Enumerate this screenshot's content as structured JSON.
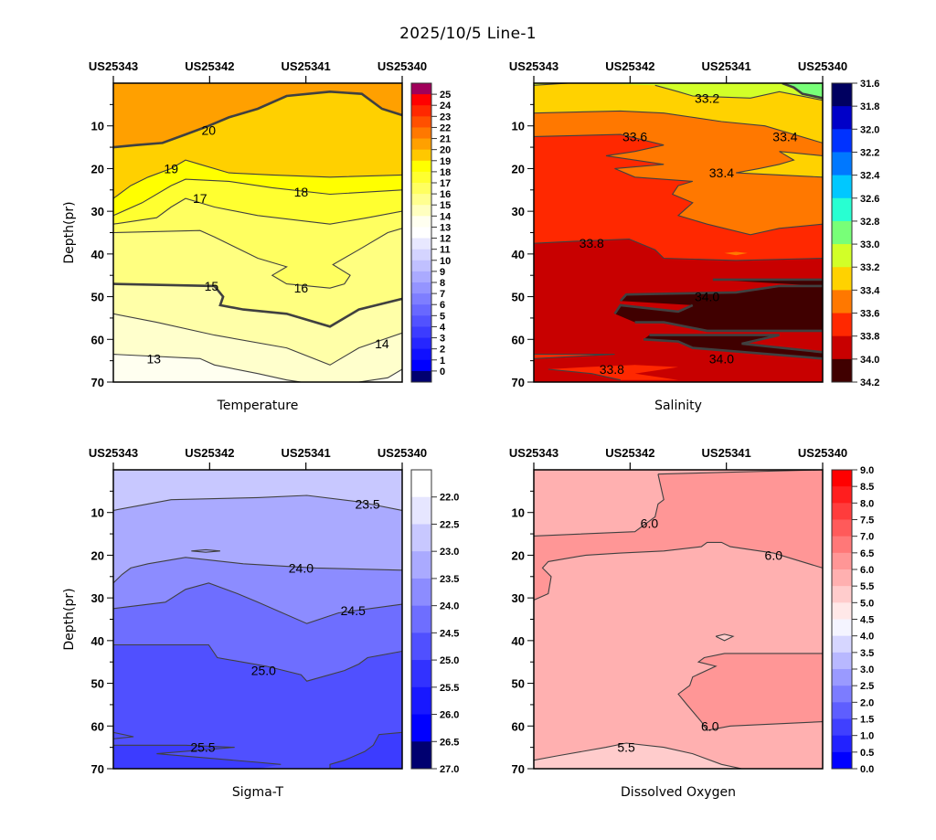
{
  "title": "2025/10/5  Line-1",
  "chart_data": [
    {
      "type": "contour",
      "title": "Temperature",
      "ylabel": "Depth(pr)",
      "x_stations": [
        "US25343",
        "US25342",
        "US25341",
        "US25340"
      ],
      "ylim": [
        0,
        70
      ],
      "y_ticks": [
        10,
        20,
        30,
        40,
        50,
        60,
        70
      ],
      "colorbar": {
        "levels": [
          0,
          1,
          2,
          3,
          4,
          5,
          6,
          7,
          8,
          9,
          10,
          11,
          12,
          13,
          14,
          15,
          16,
          17,
          18,
          19,
          20,
          21,
          22,
          23,
          24,
          25
        ],
        "tick_labels": [
          "25",
          "24",
          "23",
          "22",
          "21",
          "20",
          "19",
          "18",
          "17",
          "16",
          "15",
          "14",
          "13",
          "12",
          "11",
          "10",
          "9",
          "8",
          "7",
          "6",
          "5",
          "4",
          "3",
          "2",
          "1",
          "0"
        ],
        "colors_top_to_bottom": [
          "#a0005a",
          "#ff0000",
          "#ff2800",
          "#ff5000",
          "#ff7800",
          "#ffa000",
          "#ffc800",
          "#ffff00",
          "#ffff30",
          "#ffff60",
          "#ffff90",
          "#ffffc0",
          "#fffff0",
          "#ffffff",
          "#e8e8ff",
          "#d4d4ff",
          "#c0c0ff",
          "#aaaaff",
          "#9494ff",
          "#7e7eff",
          "#6868ff",
          "#5252ff",
          "#3c3cff",
          "#2626ff",
          "#1010ff",
          "#0000ff",
          "#000070"
        ]
      },
      "contour_labels": [
        "20",
        "19",
        "18",
        "17",
        "16",
        "15",
        "14",
        "13"
      ],
      "field_colors_by_band": {
        "20-21": "#ffa000",
        "19-20": "#ffd000",
        "18-19": "#ffff00",
        "17-18": "#ffff30",
        "16-17": "#ffff60",
        "15-16": "#ffff88",
        "14-15": "#ffffb0",
        "13-14": "#ffffd8",
        "12-13": "#fffff4"
      },
      "contour_depths": {
        "x": [
          0,
          0.25,
          0.5,
          0.75,
          1.0
        ],
        "c20": [
          15,
          13,
          7,
          2,
          8
        ],
        "c19": [
          27,
          19,
          21,
          21,
          21.5
        ],
        "c18": [
          31,
          22.5,
          26,
          26,
          25
        ],
        "c17": [
          33,
          30,
          32,
          32,
          30
        ],
        "c16": [
          35,
          35,
          42,
          48,
          34
        ],
        "c15": [
          47,
          48,
          53,
          57,
          50
        ],
        "c14": [
          54,
          58,
          62,
          66,
          58.5
        ],
        "c13": [
          63.5,
          65,
          67,
          71,
          67
        ]
      }
    },
    {
      "type": "contour",
      "title": "Salinity",
      "x_stations": [
        "US25343",
        "US25342",
        "US25341",
        "US25340"
      ],
      "ylim": [
        0,
        70
      ],
      "y_ticks": [
        10,
        20,
        30,
        40,
        50,
        60,
        70
      ],
      "colorbar": {
        "tick_labels": [
          "31.6",
          "31.8",
          "32.0",
          "32.2",
          "32.4",
          "32.6",
          "32.8",
          "33.0",
          "33.2",
          "33.4",
          "33.6",
          "33.8",
          "34.0",
          "34.2"
        ],
        "colors_top_to_bottom": [
          "#000060",
          "#0000c8",
          "#0032ff",
          "#0078ff",
          "#00c8ff",
          "#28ffd2",
          "#78ff78",
          "#d2ff28",
          "#ffd200",
          "#ff7800",
          "#ff2800",
          "#c80000",
          "#400000"
        ]
      },
      "contour_labels": [
        "33.2",
        "33.6",
        "33.4",
        "33.4",
        "33.8",
        "34.0",
        "34.0",
        "33.8"
      ]
    },
    {
      "type": "contour",
      "title": "Sigma-T",
      "ylabel": "Depth(pr)",
      "x_stations": [
        "US25343",
        "US25342",
        "US25341",
        "US25340"
      ],
      "ylim": [
        0,
        70
      ],
      "y_ticks": [
        10,
        20,
        30,
        40,
        50,
        60,
        70
      ],
      "colorbar": {
        "tick_labels": [
          "22.0",
          "22.5",
          "23.0",
          "23.5",
          "24.0",
          "24.5",
          "25.0",
          "25.5",
          "26.0",
          "26.5",
          "27.0"
        ],
        "colors_top_to_bottom": [
          "#ffffff",
          "#e6e6ff",
          "#c8c8ff",
          "#aaaaff",
          "#8c8cff",
          "#6e6eff",
          "#5050ff",
          "#3232ff",
          "#1818ff",
          "#0000ff",
          "#000070"
        ]
      },
      "contour_labels": [
        "23.5",
        "24.0",
        "24.5",
        "25.0",
        "25.5"
      ]
    },
    {
      "type": "contour",
      "title": "Dissolved Oxygen",
      "x_stations": [
        "US25343",
        "US25342",
        "US25341",
        "US25340"
      ],
      "ylim": [
        0,
        70
      ],
      "y_ticks": [
        10,
        20,
        30,
        40,
        50,
        60,
        70
      ],
      "colorbar": {
        "tick_labels": [
          "9.0",
          "8.5",
          "8.0",
          "7.5",
          "7.0",
          "6.5",
          "6.0",
          "5.5",
          "5.0",
          "4.5",
          "4.0",
          "3.5",
          "3.0",
          "2.5",
          "2.0",
          "1.5",
          "1.0",
          "0.5",
          "0.0"
        ],
        "colors_top_to_bottom": [
          "#ff0000",
          "#ff1e1e",
          "#ff3c3c",
          "#ff5a5a",
          "#ff7878",
          "#ff9696",
          "#ffb0b0",
          "#ffcccc",
          "#ffe8e8",
          "#f4f4ff",
          "#d6d6ff",
          "#b8b8ff",
          "#9a9aff",
          "#7c7cff",
          "#5e5eff",
          "#4040ff",
          "#2222ff",
          "#0000ff"
        ]
      },
      "contour_labels": [
        "6.0",
        "6.0",
        "6.0",
        "5.5"
      ]
    }
  ]
}
